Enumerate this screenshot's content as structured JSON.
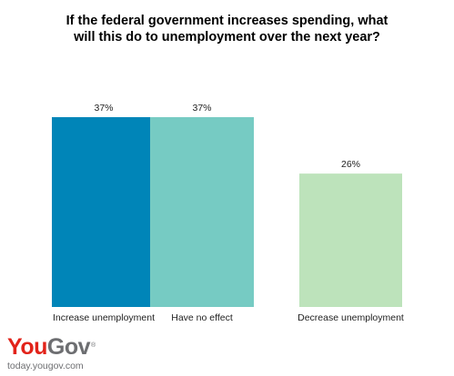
{
  "chart_data": {
    "type": "bar",
    "title_lines": [
      "If the federal government increases spending, what",
      "will this do to unemployment over the next year?"
    ],
    "categories": [
      "Increase unemployment",
      "Have no effect",
      "Decrease unemployment"
    ],
    "values": [
      37,
      37,
      26
    ],
    "value_labels": [
      "37%",
      "37%",
      "26%"
    ],
    "colors": [
      "#0085b8",
      "#76cbc3",
      "#bde3bb"
    ],
    "unit": "%",
    "ylim": [
      0,
      37
    ],
    "grid": false,
    "legend": "none"
  },
  "branding": {
    "logo_part_a": "You",
    "logo_part_b": "Gov",
    "logo_mark": "®",
    "url": "today.yougov.com"
  }
}
